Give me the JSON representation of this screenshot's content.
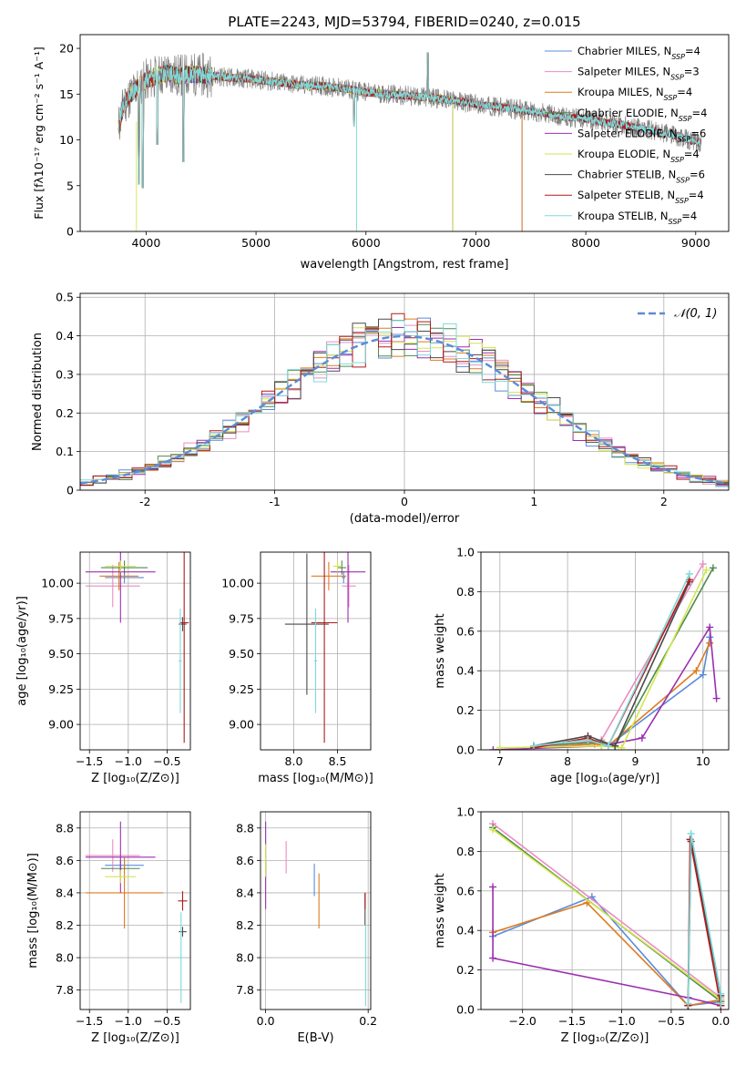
{
  "colors": {
    "Chabrier MILES": "#5b8bd8",
    "Salpeter MILES": "#e98cc2",
    "Kroupa MILES": "#de7b1e",
    "Chabrier ELODIE": "#4f8a4f",
    "Salpeter ELODIE": "#9b2fb0",
    "Kroupa ELODIE": "#d2e64e",
    "Chabrier STELIB": "#4a4a4a",
    "Salpeter STELIB": "#b21a1a",
    "Kroupa STELIB": "#7fd9d9",
    "gaussian": "#5b8bd8",
    "data": "#808080"
  },
  "legend_main": [
    {
      "model": "Chabrier MILES",
      "label": "Chabrier MILES, N",
      "sub": "SSP",
      "suffix": "=4"
    },
    {
      "model": "Salpeter MILES",
      "label": "Salpeter MILES, N",
      "sub": "SSP",
      "suffix": "=3"
    },
    {
      "model": "Kroupa MILES",
      "label": "Kroupa MILES, N",
      "sub": "SSP",
      "suffix": "=4"
    },
    {
      "model": "Chabrier ELODIE",
      "label": "Chabrier ELODIE, N",
      "sub": "SSP",
      "suffix": "=4"
    },
    {
      "model": "Salpeter ELODIE",
      "label": "Salpeter ELODIE, N",
      "sub": "SSP",
      "suffix": "=6"
    },
    {
      "model": "Kroupa ELODIE",
      "label": "Kroupa ELODIE, N",
      "sub": "SSP",
      "suffix": "=4"
    },
    {
      "model": "Chabrier STELIB",
      "label": "Chabrier STELIB, N",
      "sub": "SSP",
      "suffix": "=6"
    },
    {
      "model": "Salpeter STELIB",
      "label": "Salpeter STELIB, N",
      "sub": "SSP",
      "suffix": "=4"
    },
    {
      "model": "Kroupa STELIB",
      "label": "Kroupa STELIB, N",
      "sub": "SSP",
      "suffix": "=4"
    }
  ],
  "chart_data": [
    {
      "id": "spectrum",
      "type": "line",
      "title": "PLATE=2243, MJD=53794, FIBERID=0240, z=0.015",
      "xlabel": "wavelength [Angstrom, rest frame]",
      "ylabel": "Flux [fλ10⁻¹⁷ erg cm⁻² s⁻¹ A⁻¹]",
      "xlim": [
        3400,
        9300
      ],
      "ylim": [
        0,
        21.5
      ],
      "xticks": [
        4000,
        5000,
        6000,
        7000,
        8000,
        9000
      ],
      "yticks": [
        0,
        5,
        10,
        15,
        20
      ],
      "continuum": {
        "x": [
          3750,
          3800,
          3900,
          4000,
          4100,
          4200,
          4300,
          4400,
          4600,
          4800,
          5000,
          5200,
          5400,
          5600,
          5800,
          6000,
          6200,
          6400,
          6600,
          6800,
          7000,
          7200,
          7400,
          7600,
          7800,
          8000,
          8200,
          8400,
          8600,
          8800,
          9000,
          9050
        ],
        "y": [
          11.5,
          14.0,
          15.5,
          16.5,
          17.0,
          17.3,
          17.0,
          17.2,
          17.0,
          16.8,
          16.6,
          16.3,
          16.0,
          15.9,
          15.6,
          15.2,
          15.0,
          14.8,
          14.6,
          14.3,
          13.9,
          13.6,
          13.3,
          13.0,
          12.5,
          12.3,
          11.8,
          11.5,
          11.0,
          10.5,
          9.8,
          9.7
        ]
      },
      "features": [
        {
          "x": 3934,
          "y": 5.2
        },
        {
          "x": 3970,
          "y": 4.8
        },
        {
          "x": 4102,
          "y": 9.5
        },
        {
          "x": 4340,
          "y": 7.6
        },
        {
          "x": 5892,
          "y": 11.5
        },
        {
          "x": 6563,
          "y": 19.5
        },
        {
          "x": 6583,
          "y": 16.0
        }
      ],
      "models_extent": {
        "start": 3750,
        "end_MILES": 7420,
        "end_ELODIE": 6790,
        "end_STELIB": 9050
      }
    },
    {
      "id": "residuals",
      "type": "histogram",
      "xlabel": "(data-model)/error",
      "ylabel": "Normed distribution",
      "xlim": [
        -2.5,
        2.5
      ],
      "ylim": [
        0,
        0.51
      ],
      "xticks": [
        -2,
        -1,
        0,
        1,
        2
      ],
      "yticks": [
        0,
        0.1,
        0.2,
        0.3,
        0.4,
        0.5
      ],
      "bin_width": 0.1,
      "gaussian_label": "𝒩(0, 1)"
    },
    {
      "id": "age-vs-Z",
      "type": "errorbar",
      "xlabel": "Z [log₁₀(Z/Z⊙)]",
      "ylabel": "age  [log₁₀(age/yr)]",
      "xlim": [
        -1.62,
        -0.2
      ],
      "ylim": [
        8.82,
        10.22
      ],
      "xticks": [
        -1.5,
        -1.0,
        -0.5
      ],
      "xtick_labels": [
        "−1.5",
        "−1.0",
        "−0.5"
      ],
      "yticks": [
        9.0,
        9.25,
        9.5,
        9.75,
        10.0
      ],
      "ytick_labels": [
        "9.00",
        "9.25",
        "9.50",
        "9.75",
        "10.00"
      ],
      "points": [
        {
          "model": "Chabrier MILES",
          "x": -1.05,
          "xerr": 0.25,
          "y": 10.04,
          "yerr": 0.04
        },
        {
          "model": "Salpeter MILES",
          "x": -1.2,
          "xerr": 0.35,
          "y": 9.98,
          "yerr": 0.15
        },
        {
          "model": "Kroupa MILES",
          "x": -1.12,
          "xerr": 0.25,
          "y": 10.05,
          "yerr": 0.1
        },
        {
          "model": "Chabrier ELODIE",
          "x": -1.05,
          "xerr": 0.3,
          "y": 10.11,
          "yerr": 0.05
        },
        {
          "model": "Salpeter ELODIE",
          "x": -1.1,
          "xerr": 0.45,
          "y": 10.08,
          "yerr": 0.36
        },
        {
          "model": "Kroupa ELODIE",
          "x": -1.1,
          "xerr": 0.2,
          "y": 10.12,
          "yerr": 0.04
        },
        {
          "model": "Chabrier STELIB",
          "x": -0.3,
          "xerr": 0.05,
          "y": 9.71,
          "yerr": 0.05
        },
        {
          "model": "Salpeter STELIB",
          "x": -0.28,
          "xerr": 0.06,
          "y": 9.72,
          "yerr": 0.85
        },
        {
          "model": "Kroupa STELIB",
          "x": -0.33,
          "xerr": 0.02,
          "y": 9.45,
          "yerr": 0.37
        }
      ]
    },
    {
      "id": "age-vs-mass",
      "type": "errorbar",
      "xlabel": "mass [log₁₀(M/M⊙)]",
      "ylabel": "",
      "xlim": [
        7.62,
        8.88
      ],
      "ylim": [
        8.82,
        10.22
      ],
      "xticks": [
        8.0,
        8.5
      ],
      "xtick_labels": [
        "8.0",
        "8.5"
      ],
      "yticks": [
        9.0,
        9.25,
        9.5,
        9.75,
        10.0
      ],
      "ytick_labels": [
        "9.00",
        "9.25",
        "9.50",
        "9.75",
        "10.00"
      ],
      "points": [
        {
          "model": "Chabrier MILES",
          "x": 8.57,
          "xerr": 0.02,
          "y": 10.04,
          "yerr": 0.04
        },
        {
          "model": "Salpeter MILES",
          "x": 8.63,
          "xerr": 0.08,
          "y": 9.98,
          "yerr": 0.15
        },
        {
          "model": "Kroupa MILES",
          "x": 8.4,
          "xerr": 0.2,
          "y": 10.05,
          "yerr": 0.1
        },
        {
          "model": "Chabrier ELODIE",
          "x": 8.55,
          "xerr": 0.05,
          "y": 10.11,
          "yerr": 0.05
        },
        {
          "model": "Salpeter ELODIE",
          "x": 8.62,
          "xerr": 0.2,
          "y": 10.08,
          "yerr": 0.36
        },
        {
          "model": "Kroupa ELODIE",
          "x": 8.5,
          "xerr": 0.05,
          "y": 10.12,
          "yerr": 0.04
        },
        {
          "model": "Chabrier STELIB",
          "x": 8.15,
          "xerr": 0.25,
          "y": 9.71,
          "yerr": 0.5
        },
        {
          "model": "Salpeter STELIB",
          "x": 8.35,
          "xerr": 0.15,
          "y": 9.72,
          "yerr": 0.85
        },
        {
          "model": "Kroupa STELIB",
          "x": 8.25,
          "xerr": 0.02,
          "y": 9.45,
          "yerr": 0.37
        }
      ]
    },
    {
      "id": "weight-vs-age",
      "type": "line",
      "xlabel": "age  [log₁₀(age/yr)]",
      "ylabel": "mass weight",
      "xlim": [
        6.72,
        10.38
      ],
      "ylim": [
        0,
        1.0
      ],
      "xticks": [
        7,
        8,
        9,
        10
      ],
      "xtick_labels": [
        "7",
        "8",
        "9",
        "10"
      ],
      "yticks": [
        0,
        0.2,
        0.4,
        0.6,
        0.8,
        1.0
      ],
      "ytick_labels": [
        "0.0",
        "0.2",
        "0.4",
        "0.6",
        "0.8",
        "1.0"
      ],
      "series": [
        {
          "model": "Chabrier MILES",
          "points": [
            [
              7.5,
              0.01
            ],
            [
              8.4,
              0.03
            ],
            [
              8.6,
              0.02
            ],
            [
              10.0,
              0.38
            ],
            [
              10.1,
              0.57
            ]
          ]
        },
        {
          "model": "Salpeter MILES",
          "points": [
            [
              7.5,
              0.01
            ],
            [
              8.5,
              0.05
            ],
            [
              10.0,
              0.94
            ]
          ]
        },
        {
          "model": "Kroupa MILES",
          "points": [
            [
              7.5,
              0.01
            ],
            [
              8.4,
              0.03
            ],
            [
              8.6,
              0.02
            ],
            [
              9.9,
              0.4
            ],
            [
              10.1,
              0.54
            ]
          ]
        },
        {
          "model": "Chabrier ELODIE",
          "points": [
            [
              7.5,
              0.02
            ],
            [
              8.5,
              0.04
            ],
            [
              8.7,
              0.02
            ],
            [
              10.15,
              0.92
            ]
          ]
        },
        {
          "model": "Salpeter ELODIE",
          "points": [
            [
              6.9,
              0.0
            ],
            [
              8.5,
              0.02
            ],
            [
              9.1,
              0.06
            ],
            [
              10.1,
              0.62
            ],
            [
              10.2,
              0.26
            ]
          ]
        },
        {
          "model": "Kroupa ELODIE",
          "points": [
            [
              7.0,
              0.01
            ],
            [
              8.5,
              0.02
            ],
            [
              8.8,
              0.01
            ],
            [
              10.05,
              0.91
            ]
          ]
        },
        {
          "model": "Chabrier STELIB",
          "points": [
            [
              7.5,
              0.02
            ],
            [
              8.3,
              0.07
            ],
            [
              8.7,
              0.02
            ],
            [
              9.8,
              0.85
            ]
          ]
        },
        {
          "model": "Salpeter STELIB",
          "points": [
            [
              7.5,
              0.01
            ],
            [
              8.3,
              0.06
            ],
            [
              8.6,
              0.02
            ],
            [
              9.8,
              0.86
            ]
          ]
        },
        {
          "model": "Kroupa STELIB",
          "points": [
            [
              7.5,
              0.02
            ],
            [
              8.3,
              0.05
            ],
            [
              8.6,
              0.02
            ],
            [
              9.8,
              0.89
            ]
          ]
        }
      ]
    },
    {
      "id": "mass-vs-Z",
      "type": "errorbar",
      "xlabel": "Z [log₁₀(Z/Z⊙)]",
      "ylabel": "mass [log₁₀(M/M⊙)]",
      "xlim": [
        -1.62,
        -0.2
      ],
      "ylim": [
        7.68,
        8.9
      ],
      "xticks": [
        -1.5,
        -1.0,
        -0.5
      ],
      "xtick_labels": [
        "−1.5",
        "−1.0",
        "−0.5"
      ],
      "yticks": [
        7.8,
        8.0,
        8.2,
        8.4,
        8.6,
        8.8
      ],
      "ytick_labels": [
        "7.8",
        "8.0",
        "8.2",
        "8.4",
        "8.6",
        "8.8"
      ],
      "points": [
        {
          "model": "Chabrier MILES",
          "x": -1.05,
          "xerr": 0.25,
          "y": 8.57,
          "yerr": 0.03
        },
        {
          "model": "Salpeter MILES",
          "x": -1.2,
          "xerr": 0.35,
          "y": 8.63,
          "yerr": 0.1
        },
        {
          "model": "Kroupa MILES",
          "x": -1.05,
          "xerr": 0.5,
          "y": 8.4,
          "yerr": 0.22
        },
        {
          "model": "Chabrier ELODIE",
          "x": -1.1,
          "xerr": 0.25,
          "y": 8.55,
          "yerr": 0.05
        },
        {
          "model": "Salpeter ELODIE",
          "x": -1.1,
          "xerr": 0.45,
          "y": 8.62,
          "yerr": 0.22
        },
        {
          "model": "Kroupa ELODIE",
          "x": -1.1,
          "xerr": 0.2,
          "y": 8.5,
          "yerr": 0.04
        },
        {
          "model": "Chabrier STELIB",
          "x": -0.3,
          "xerr": 0.05,
          "y": 8.16,
          "yerr": 0.03
        },
        {
          "model": "Salpeter STELIB",
          "x": -0.3,
          "xerr": 0.06,
          "y": 8.35,
          "yerr": 0.06
        },
        {
          "model": "Kroupa STELIB",
          "x": -0.32,
          "xerr": 0.03,
          "y": 8.0,
          "yerr": 0.28
        }
      ]
    },
    {
      "id": "mass-vs-ebv",
      "type": "errorbar",
      "xlabel": "E(B-V)",
      "ylabel": "",
      "xlim": [
        -0.01,
        0.205
      ],
      "ylim": [
        7.68,
        8.9
      ],
      "xticks": [
        0.0,
        0.2
      ],
      "xtick_labels": [
        "0.0",
        "0.2"
      ],
      "yticks": [
        7.8,
        8.0,
        8.2,
        8.4,
        8.6,
        8.8
      ],
      "ytick_labels": [
        "7.8",
        "8.0",
        "8.2",
        "8.4",
        "8.6",
        "8.8"
      ],
      "points": [
        {
          "model": "Chabrier MILES",
          "x": 0.095,
          "xerr": 0.0,
          "y": 8.48,
          "yerr": 0.1
        },
        {
          "model": "Salpeter MILES",
          "x": 0.04,
          "xerr": 0.0,
          "y": 8.62,
          "yerr": 0.1
        },
        {
          "model": "Kroupa MILES",
          "x": 0.104,
          "xerr": 0.0,
          "y": 8.35,
          "yerr": 0.17
        },
        {
          "model": "Chabrier ELODIE",
          "x": 0.0,
          "xerr": 0.0,
          "y": 8.55,
          "yerr": 0.05
        },
        {
          "model": "Salpeter ELODIE",
          "x": 0.0,
          "xerr": 0.0,
          "y": 8.57,
          "yerr": 0.27
        },
        {
          "model": "Kroupa ELODIE",
          "x": 0.0,
          "xerr": 0.0,
          "y": 8.6,
          "yerr": 0.1
        },
        {
          "model": "Chabrier STELIB",
          "x": 0.194,
          "xerr": 0.0,
          "y": 8.3,
          "yerr": 0.1
        },
        {
          "model": "Salpeter STELIB",
          "x": 0.194,
          "xerr": 0.0,
          "y": 8.3,
          "yerr": 0.1
        },
        {
          "model": "Kroupa STELIB",
          "x": 0.195,
          "xerr": 0.0,
          "y": 8.0,
          "yerr": 0.3
        }
      ]
    },
    {
      "id": "weight-vs-Z",
      "type": "line",
      "xlabel": "Z [log₁₀(Z/Z⊙)]",
      "ylabel": "mass weight",
      "xlim": [
        -2.42,
        0.08
      ],
      "ylim": [
        0,
        1.0
      ],
      "xticks": [
        -2.0,
        -1.5,
        -1.0,
        -0.5,
        0.0
      ],
      "xtick_labels": [
        "−2.0",
        "−1.5",
        "−1.0",
        "−0.5",
        "0.0"
      ],
      "yticks": [
        0,
        0.2,
        0.4,
        0.6,
        0.8,
        1.0
      ],
      "ytick_labels": [
        "0.0",
        "0.2",
        "0.4",
        "0.6",
        "0.8",
        "1.0"
      ],
      "series": [
        {
          "model": "Chabrier MILES",
          "points": [
            [
              -2.3,
              0.37
            ],
            [
              -1.3,
              0.57
            ],
            [
              -0.33,
              0.02
            ],
            [
              0.0,
              0.04
            ]
          ]
        },
        {
          "model": "Salpeter MILES",
          "points": [
            [
              -2.3,
              0.94
            ],
            [
              0.0,
              0.06
            ]
          ]
        },
        {
          "model": "Kroupa MILES",
          "points": [
            [
              -2.3,
              0.39
            ],
            [
              -1.35,
              0.54
            ],
            [
              -0.33,
              0.02
            ],
            [
              0.0,
              0.05
            ]
          ]
        },
        {
          "model": "Chabrier ELODIE",
          "points": [
            [
              -2.3,
              0.92
            ],
            [
              0.0,
              0.04
            ]
          ]
        },
        {
          "model": "Salpeter ELODIE",
          "points": [
            [
              -2.3,
              0.62
            ],
            [
              -2.3,
              0.26
            ],
            [
              -0.33,
              0.06
            ],
            [
              0.0,
              0.02
            ]
          ]
        },
        {
          "model": "Kroupa ELODIE",
          "points": [
            [
              -2.3,
              0.91
            ],
            [
              0.0,
              0.05
            ]
          ]
        },
        {
          "model": "Chabrier STELIB",
          "points": [
            [
              -0.33,
              0.02
            ],
            [
              -0.3,
              0.85
            ],
            [
              0.0,
              0.07
            ],
            [
              0.0,
              0.02
            ]
          ]
        },
        {
          "model": "Salpeter STELIB",
          "points": [
            [
              -0.33,
              0.02
            ],
            [
              -0.31,
              0.86
            ],
            [
              0.0,
              0.02
            ]
          ]
        },
        {
          "model": "Kroupa STELIB",
          "points": [
            [
              -0.33,
              0.03
            ],
            [
              -0.3,
              0.89
            ],
            [
              0.0,
              0.08
            ],
            [
              0.0,
              0.03
            ]
          ]
        }
      ]
    }
  ]
}
